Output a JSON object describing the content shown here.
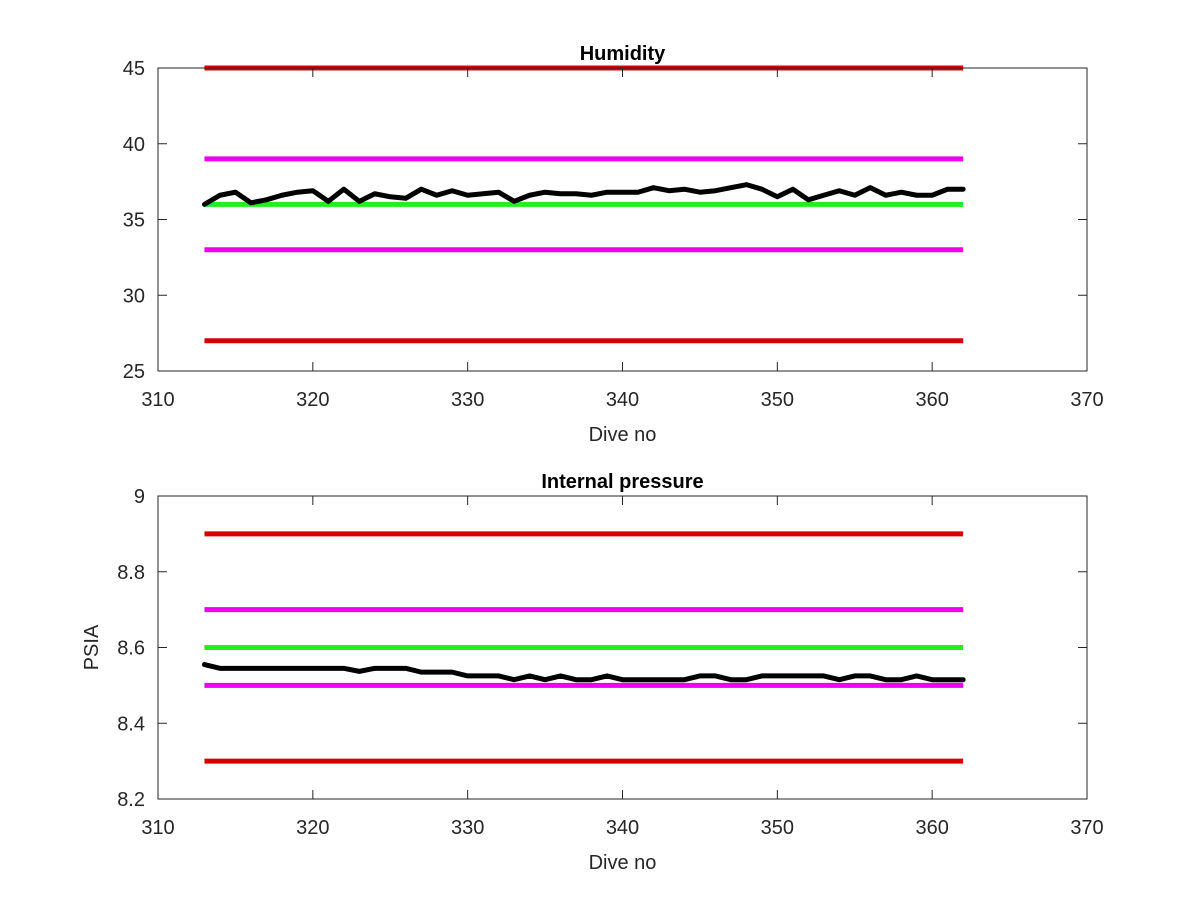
{
  "chart_data": [
    {
      "type": "line",
      "title": "Humidity",
      "xlabel": "Dive no",
      "ylabel": "",
      "xlim": [
        310,
        370
      ],
      "ylim": [
        25,
        45
      ],
      "xticks": [
        "310",
        "320",
        "330",
        "340",
        "350",
        "360",
        "370"
      ],
      "yticks": [
        "25",
        "30",
        "35",
        "40",
        "45"
      ],
      "grid": false,
      "reference_lines": [
        {
          "y": 45,
          "x": [
            313,
            362
          ],
          "color": "#d40000"
        },
        {
          "y": 39,
          "x": [
            313,
            362
          ],
          "color": "#ee00ee"
        },
        {
          "y": 36,
          "x": [
            313,
            362
          ],
          "color": "#22ee22"
        },
        {
          "y": 33,
          "x": [
            313,
            362
          ],
          "color": "#ee00ee"
        },
        {
          "y": 27,
          "x": [
            313,
            362
          ],
          "color": "#d40000"
        }
      ],
      "series": [
        {
          "color": "#000000",
          "x": [
            313,
            314,
            315,
            316,
            317,
            318,
            319,
            320,
            321,
            322,
            323,
            324,
            325,
            326,
            327,
            328,
            329,
            330,
            331,
            332,
            333,
            334,
            335,
            336,
            337,
            338,
            339,
            340,
            341,
            342,
            343,
            344,
            345,
            346,
            347,
            348,
            349,
            350,
            351,
            352,
            353,
            354,
            355,
            356,
            357,
            358,
            359,
            360,
            361,
            362
          ],
          "y": [
            36.0,
            36.6,
            36.8,
            36.1,
            36.3,
            36.6,
            36.8,
            36.9,
            36.2,
            37.0,
            36.2,
            36.7,
            36.5,
            36.4,
            37.0,
            36.6,
            36.9,
            36.6,
            36.7,
            36.8,
            36.2,
            36.6,
            36.8,
            36.7,
            36.7,
            36.6,
            36.8,
            36.8,
            36.8,
            37.1,
            36.9,
            37.0,
            36.8,
            36.9,
            37.1,
            37.3,
            37.0,
            36.5,
            37.0,
            36.3,
            36.6,
            36.9,
            36.6,
            37.1,
            36.6,
            36.8,
            36.6,
            36.6,
            37.0,
            37.0
          ]
        }
      ]
    },
    {
      "type": "line",
      "title": "Internal pressure",
      "xlabel": "Dive no",
      "ylabel": "PSIA",
      "xlim": [
        310,
        370
      ],
      "ylim": [
        8.2,
        9.0
      ],
      "xticks": [
        "310",
        "320",
        "330",
        "340",
        "350",
        "360",
        "370"
      ],
      "yticks": [
        "8.2",
        "8.4",
        "8.6",
        "8.8",
        "9"
      ],
      "grid": false,
      "reference_lines": [
        {
          "y": 8.9,
          "x": [
            313,
            362
          ],
          "color": "#d40000"
        },
        {
          "y": 8.7,
          "x": [
            313,
            362
          ],
          "color": "#ee00ee"
        },
        {
          "y": 8.6,
          "x": [
            313,
            362
          ],
          "color": "#22ee22"
        },
        {
          "y": 8.5,
          "x": [
            313,
            362
          ],
          "color": "#ee00ee"
        },
        {
          "y": 8.3,
          "x": [
            313,
            362
          ],
          "color": "#d40000"
        }
      ],
      "series": [
        {
          "color": "#000000",
          "x": [
            313,
            314,
            315,
            316,
            317,
            318,
            319,
            320,
            321,
            322,
            323,
            324,
            325,
            326,
            327,
            328,
            329,
            330,
            331,
            332,
            333,
            334,
            335,
            336,
            337,
            338,
            339,
            340,
            341,
            342,
            343,
            344,
            345,
            346,
            347,
            348,
            349,
            350,
            351,
            352,
            353,
            354,
            355,
            356,
            357,
            358,
            359,
            360,
            361,
            362
          ],
          "y": [
            8.555,
            8.545,
            8.545,
            8.545,
            8.545,
            8.545,
            8.545,
            8.545,
            8.545,
            8.545,
            8.537,
            8.545,
            8.545,
            8.545,
            8.535,
            8.535,
            8.535,
            8.525,
            8.525,
            8.525,
            8.515,
            8.525,
            8.515,
            8.525,
            8.515,
            8.515,
            8.525,
            8.515,
            8.515,
            8.515,
            8.515,
            8.515,
            8.525,
            8.525,
            8.515,
            8.515,
            8.525,
            8.525,
            8.525,
            8.525,
            8.525,
            8.515,
            8.525,
            8.525,
            8.515,
            8.515,
            8.525,
            8.515,
            8.515,
            8.515
          ]
        }
      ]
    }
  ]
}
